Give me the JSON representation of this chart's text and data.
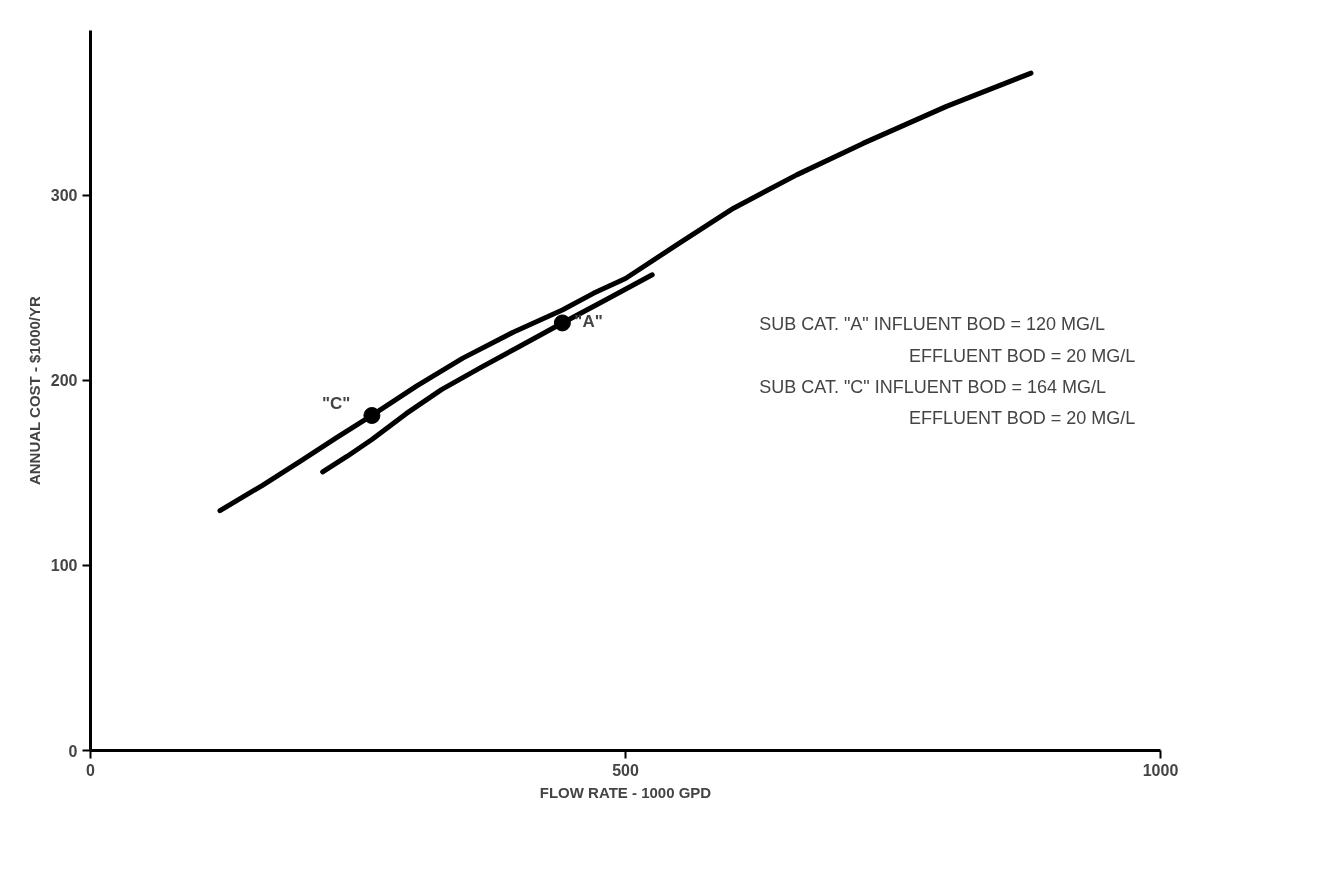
{
  "chart_data": {
    "type": "line",
    "xlabel": "FLOW RATE - 1000 GPD",
    "ylabel": "ANNUAL COST - $1000/YR",
    "xlim": [
      0,
      1000
    ],
    "ylim": [
      0,
      389
    ],
    "xticks": [
      0,
      500,
      1000
    ],
    "yticks": [
      0,
      100,
      200,
      300
    ],
    "grid": false,
    "line_style": "solid",
    "marker": "none",
    "series": [
      {
        "color": "#000000",
        "x": [
          121,
          160,
          197,
          230,
          263,
          305,
          348,
          395,
          441,
          470,
          500,
          550,
          601,
          660,
          722,
          800,
          879
        ],
        "values": [
          129.6,
          143,
          156.6,
          169,
          181,
          197,
          212,
          226,
          238,
          247,
          255,
          274,
          293,
          311,
          328,
          348,
          366
        ]
      },
      {
        "color": "#000000",
        "x": [
          217,
          240,
          263,
          295,
          328,
          365,
          400,
          441,
          480,
          525
        ],
        "values": [
          150.5,
          159,
          168,
          182,
          195,
          207,
          218,
          231,
          243,
          257
        ]
      },
      {
        "type": "scatter",
        "marker": "circle",
        "color": "#000000",
        "x": [
          263,
          441
        ],
        "values": [
          181,
          231
        ]
      }
    ],
    "annotations": [
      {
        "text": "\"C\"",
        "x": 263,
        "y": 181
      },
      {
        "text": "\"A\"",
        "x": 441,
        "y": 231
      },
      "SUB CAT. \"A\"  INFLUENT BOD = 120 MG/L",
      "EFFLUENT BOD = 20 MG/L",
      "SUB CAT. \"C\"  INFLUENT BOD = 164 MG/L",
      "EFFLUENT BOD = 20 MG/L"
    ]
  }
}
